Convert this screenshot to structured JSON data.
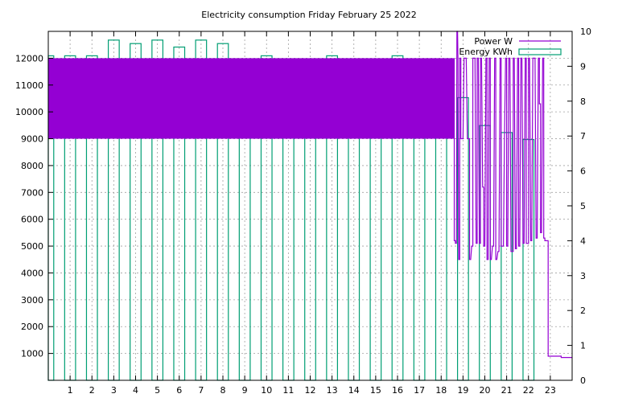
{
  "chart_data": {
    "type": "bar",
    "title": "Electricity consumption Friday February 25 2022",
    "x_ticks": [
      "1",
      "2",
      "3",
      "4",
      "5",
      "6",
      "7",
      "8",
      "9",
      "10",
      "11",
      "12",
      "13",
      "14",
      "15",
      "16",
      "17",
      "18",
      "19",
      "20",
      "21",
      "22",
      "23"
    ],
    "xlim": [
      0,
      24
    ],
    "y_left_ticks": [
      "1000",
      "2000",
      "3000",
      "4000",
      "5000",
      "6000",
      "7000",
      "8000",
      "9000",
      "10000",
      "11000",
      "12000"
    ],
    "y_left_range": [
      0,
      13000
    ],
    "y_right_ticks": [
      "0",
      "1",
      "2",
      "3",
      "4",
      "5",
      "6",
      "7",
      "8",
      "9",
      "10"
    ],
    "y_right_range": [
      0,
      10
    ],
    "grid": true,
    "legend_position": "top-right",
    "series": [
      {
        "name": "Energy KWh",
        "type": "bar",
        "axis": "right",
        "color": "#009e73",
        "hours": [
          0,
          1,
          2,
          3,
          4,
          5,
          6,
          7,
          8,
          9,
          10,
          11,
          12,
          13,
          14,
          15,
          16,
          17,
          18,
          19,
          20,
          21,
          22
        ],
        "values": [
          9.3,
          9.3,
          9.3,
          9.75,
          9.65,
          9.75,
          9.55,
          9.75,
          9.65,
          9.2,
          9.3,
          9.1,
          9.05,
          9.3,
          9.2,
          9.1,
          9.3,
          9.2,
          8.7,
          8.1,
          7.3,
          7.1,
          6.9
        ]
      },
      {
        "name": "Power W",
        "type": "line",
        "axis": "left",
        "color": "#9400d3",
        "dense_range": {
          "x_from": 0,
          "x_to": 18.6,
          "low": 9000,
          "high": 12000
        },
        "trace": [
          [
            18.6,
            12000
          ],
          [
            18.6,
            5200
          ],
          [
            18.65,
            5200
          ],
          [
            18.65,
            5100
          ],
          [
            18.7,
            5100
          ],
          [
            18.72,
            13000
          ],
          [
            18.75,
            13000
          ],
          [
            18.77,
            12000
          ],
          [
            18.8,
            4500
          ],
          [
            18.85,
            4500
          ],
          [
            18.85,
            12000
          ],
          [
            18.9,
            12000
          ],
          [
            18.9,
            9000
          ],
          [
            19.0,
            9000
          ],
          [
            19.05,
            12000
          ],
          [
            19.15,
            12000
          ],
          [
            19.2,
            9000
          ],
          [
            19.3,
            9000
          ],
          [
            19.3,
            4500
          ],
          [
            19.35,
            4500
          ],
          [
            19.4,
            5000
          ],
          [
            19.45,
            5000
          ],
          [
            19.45,
            12000
          ],
          [
            19.55,
            12000
          ],
          [
            19.6,
            5100
          ],
          [
            19.65,
            5100
          ],
          [
            19.65,
            12000
          ],
          [
            19.7,
            12000
          ],
          [
            19.75,
            5100
          ],
          [
            19.8,
            5100
          ],
          [
            19.8,
            12000
          ],
          [
            19.85,
            12000
          ],
          [
            19.9,
            7200
          ],
          [
            19.95,
            7200
          ],
          [
            19.95,
            5000
          ],
          [
            20.0,
            5000
          ],
          [
            20.05,
            12000
          ],
          [
            20.1,
            12000
          ],
          [
            20.1,
            4500
          ],
          [
            20.15,
            4500
          ],
          [
            20.2,
            12000
          ],
          [
            20.25,
            12000
          ],
          [
            20.25,
            4500
          ],
          [
            20.3,
            4500
          ],
          [
            20.35,
            5000
          ],
          [
            20.4,
            5000
          ],
          [
            20.45,
            12000
          ],
          [
            20.5,
            12000
          ],
          [
            20.5,
            4500
          ],
          [
            20.55,
            4500
          ],
          [
            20.6,
            4800
          ],
          [
            20.65,
            4800
          ],
          [
            20.7,
            12000
          ],
          [
            20.75,
            12000
          ],
          [
            20.75,
            5000
          ],
          [
            20.85,
            5000
          ],
          [
            20.9,
            9000
          ],
          [
            20.95,
            12000
          ],
          [
            21.0,
            12000
          ],
          [
            21.0,
            5000
          ],
          [
            21.05,
            5000
          ],
          [
            21.1,
            12000
          ],
          [
            21.15,
            12000
          ],
          [
            21.2,
            4800
          ],
          [
            21.3,
            4800
          ],
          [
            21.3,
            12000
          ],
          [
            21.35,
            12000
          ],
          [
            21.4,
            4900
          ],
          [
            21.45,
            4900
          ],
          [
            21.5,
            12000
          ],
          [
            21.55,
            12000
          ],
          [
            21.55,
            5000
          ],
          [
            21.6,
            5000
          ],
          [
            21.65,
            12000
          ],
          [
            21.7,
            12000
          ],
          [
            21.75,
            5100
          ],
          [
            21.8,
            5100
          ],
          [
            21.85,
            12000
          ],
          [
            21.9,
            12000
          ],
          [
            21.9,
            5100
          ],
          [
            22.0,
            5100
          ],
          [
            22.0,
            12000
          ],
          [
            22.05,
            12000
          ],
          [
            22.1,
            5200
          ],
          [
            22.15,
            5200
          ],
          [
            22.2,
            12000
          ],
          [
            22.3,
            12000
          ],
          [
            22.35,
            5300
          ],
          [
            22.4,
            5300
          ],
          [
            22.45,
            12000
          ],
          [
            22.5,
            12000
          ],
          [
            22.5,
            10300
          ],
          [
            22.55,
            10300
          ],
          [
            22.55,
            5500
          ],
          [
            22.6,
            5500
          ],
          [
            22.65,
            12000
          ],
          [
            22.7,
            12000
          ],
          [
            22.7,
            5300
          ],
          [
            22.75,
            5300
          ],
          [
            22.75,
            5200
          ],
          [
            22.9,
            5200
          ],
          [
            22.9,
            900
          ],
          [
            23.5,
            900
          ],
          [
            23.5,
            850
          ],
          [
            24,
            850
          ]
        ]
      }
    ]
  }
}
